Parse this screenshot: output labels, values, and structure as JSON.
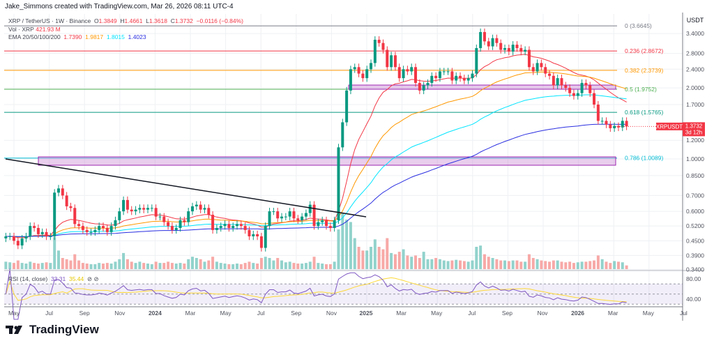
{
  "credit": "Jake_Simmons created with TradingView.com, Mar 26, 2026 08:11 UTC-4",
  "legend": {
    "symbol": "XRP / TetherUS · 1W · Binance",
    "o_label": "O",
    "o": "1.3849",
    "h_label": "H",
    "h": "1.4661",
    "l_label": "L",
    "l": "1.3618",
    "c_label": "C",
    "c": "1.3732",
    "change": "−0.0116 (−0.84%)",
    "vol_label": "Vol · XRP",
    "vol": "421.93 M",
    "ema_label": "EMA 20/50/100/200",
    "ema20": "1.7390",
    "ema50": "1.9817",
    "ema100": "1.8015",
    "ema200": "1.4023",
    "rsi_label": "RSI (14, close)",
    "rsi": "33.31",
    "rsi_ma": "35.44"
  },
  "colors": {
    "up": "#089981",
    "down": "#f23645",
    "vol_up": "#92d2cc",
    "vol_down": "#f7a9a7",
    "ema20": "#f23645",
    "ema50": "#ff9800",
    "ema100": "#00e5ff",
    "ema200": "#2a2ee0",
    "rsi": "#7e57c2",
    "rsi_ma": "#fdd835"
  },
  "price_axis": {
    "currency": "USDT",
    "scale": "log",
    "ticks": [
      "3.4000",
      "2.8000",
      "2.4000",
      "2.0000",
      "1.7000",
      "1.2000",
      "1.0000",
      "0.8500",
      "0.7000",
      "0.6000",
      "0.5200",
      "0.4500",
      "0.3900",
      "0.3400"
    ]
  },
  "rsi_axis": {
    "ticks": [
      "80.00",
      "40.00"
    ]
  },
  "time_axis": {
    "ticks": [
      "May",
      "Jul",
      "Sep",
      "Nov",
      "2024",
      "Mar",
      "May",
      "Jul",
      "Sep",
      "Nov",
      "2025",
      "Mar",
      "May",
      "Jul",
      "Sep",
      "Nov",
      "2026",
      "Mar",
      "May",
      "Jul"
    ]
  },
  "last_price": {
    "symbol": "XRPUSDT",
    "price": "1.3732",
    "countdown": "3d 12h"
  },
  "fib_levels": [
    {
      "label": "0 (3.6645)",
      "value": 3.6645,
      "color": "#787b86"
    },
    {
      "label": "0.236 (2.8672)",
      "value": 2.8672,
      "color": "#f23645"
    },
    {
      "label": "0.382 (2.3739)",
      "value": 2.3739,
      "color": "#ff9800"
    },
    {
      "label": "0.5 (1.9752)",
      "value": 1.9752,
      "color": "#4caf50"
    },
    {
      "label": "0.618 (1.5765)",
      "value": 1.5765,
      "color": "#089981"
    },
    {
      "label": "0.786 (1.0089)",
      "value": 1.0089,
      "color": "#00bcd4"
    }
  ],
  "chart_data": {
    "type": "candlestick",
    "interval": "1W",
    "first_week": "2023-04-17",
    "close": [
      0.47,
      0.47,
      0.45,
      0.43,
      0.46,
      0.47,
      0.52,
      0.51,
      0.48,
      0.49,
      0.47,
      0.47,
      0.72,
      0.75,
      0.7,
      0.63,
      0.62,
      0.53,
      0.52,
      0.5,
      0.49,
      0.49,
      0.5,
      0.52,
      0.51,
      0.49,
      0.52,
      0.55,
      0.6,
      0.67,
      0.61,
      0.6,
      0.61,
      0.62,
      0.61,
      0.62,
      0.62,
      0.57,
      0.57,
      0.54,
      0.52,
      0.5,
      0.51,
      0.55,
      0.54,
      0.6,
      0.63,
      0.64,
      0.61,
      0.62,
      0.58,
      0.5,
      0.51,
      0.52,
      0.53,
      0.51,
      0.52,
      0.53,
      0.52,
      0.5,
      0.47,
      0.48,
      0.47,
      0.42,
      0.52,
      0.6,
      0.6,
      0.56,
      0.57,
      0.57,
      0.6,
      0.56,
      0.55,
      0.57,
      0.59,
      0.64,
      0.52,
      0.54,
      0.55,
      0.52,
      0.51,
      0.55,
      1.12,
      1.43,
      1.95,
      2.4,
      2.45,
      2.3,
      2.2,
      2.4,
      2.55,
      3.2,
      3.1,
      2.9,
      2.45,
      2.75,
      2.45,
      2.2,
      2.4,
      2.35,
      2.45,
      2.1,
      1.95,
      2.05,
      2.1,
      2.25,
      2.2,
      2.35,
      2.35,
      2.35,
      2.15,
      2.25,
      2.2,
      2.15,
      2.2,
      2.3,
      2.95,
      3.45,
      3.15,
      3.0,
      3.25,
      3.1,
      2.9,
      2.95,
      2.85,
      3.05,
      2.95,
      2.85,
      2.9,
      2.45,
      2.35,
      2.55,
      2.45,
      2.3,
      2.25,
      2.05,
      2.2,
      2.05,
      2.0,
      1.9,
      1.85,
      1.9,
      2.1,
      2.05,
      1.9,
      1.7,
      1.45,
      1.45,
      1.4,
      1.35,
      1.38,
      1.36,
      1.45,
      1.3732
    ],
    "volume_m": [
      600,
      550,
      500,
      700,
      500,
      450,
      600,
      500,
      450,
      500,
      550,
      500,
      2600,
      1500,
      900,
      800,
      700,
      1200,
      700,
      500,
      450,
      400,
      400,
      500,
      450,
      500,
      450,
      600,
      800,
      1300,
      800,
      600,
      500,
      600,
      500,
      450,
      400,
      600,
      500,
      500,
      600,
      500,
      450,
      500,
      450,
      800,
      1000,
      900,
      800,
      600,
      700,
      1000,
      600,
      500,
      450,
      400,
      400,
      450,
      400,
      500,
      600,
      500,
      450,
      900,
      1000,
      900,
      700,
      900,
      700,
      550,
      600,
      500,
      450,
      450,
      500,
      600,
      1000,
      500,
      450,
      400,
      400,
      600,
      3200,
      4500,
      4000,
      3800,
      2500,
      1800,
      1500,
      1500,
      1800,
      2400,
      1800,
      1600,
      2500,
      1300,
      1200,
      1400,
      1600,
      1100,
      1000,
      1100,
      900,
      1400,
      800,
      800,
      900,
      800,
      700,
      650,
      700,
      750,
      700,
      650,
      600,
      700,
      1800,
      1900,
      1200,
      1000,
      900,
      800,
      700,
      700,
      650,
      700,
      700,
      600,
      600,
      1200,
      900,
      800,
      700,
      650,
      600,
      700,
      700,
      600,
      550,
      600,
      500,
      550,
      600,
      600,
      650,
      700,
      1100,
      800,
      600,
      500,
      650,
      600,
      550,
      300
    ]
  },
  "brand": "TradingView"
}
